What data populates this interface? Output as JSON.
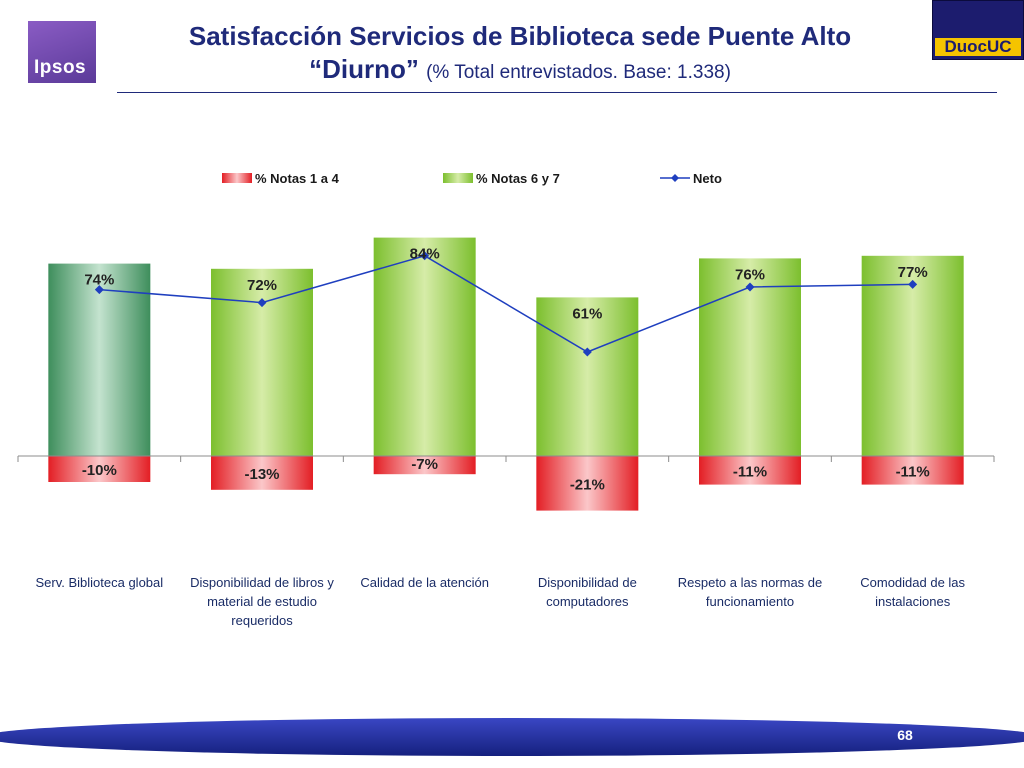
{
  "header": {
    "title_line1": "Satisfacción Servicios de Biblioteca sede Puente Alto",
    "title_line2_strong": "“Diurno”",
    "title_line2_note": "(% Total entrevistados. Base: 1.338)"
  },
  "logos": {
    "left": "Ipsos",
    "right": "DuocUC"
  },
  "footer": {
    "page_number": "68"
  },
  "colors": {
    "title": "#1f2a7a",
    "positive_bar": "#8cc63f",
    "first_bar": "#4a9c6a",
    "negative_bar": "#e31e24",
    "neto_line": "#1f3fbf",
    "footer_band": "#1f2aa8"
  },
  "chart_data": {
    "type": "bar",
    "categories": [
      "Serv. Biblioteca global",
      "Disponibilidad de libros y material de estudio requeridos",
      "Calidad de la atención",
      "Disponibilidad de computadores",
      "Respeto a las normas de funcionamiento",
      "Comodidad de las instalaciones"
    ],
    "series": [
      {
        "name": "% Notas 1 a 4",
        "values": [
          -10,
          -13,
          -7,
          -21,
          -11,
          -11
        ]
      },
      {
        "name": "% Notas 6 y 7",
        "values": [
          74,
          72,
          84,
          61,
          76,
          77
        ]
      },
      {
        "name": "Neto",
        "type": "line",
        "values": [
          64,
          59,
          77,
          40,
          65,
          66
        ]
      }
    ],
    "data_labels": {
      "positive": [
        "74%",
        "72%",
        "84%",
        "61%",
        "76%",
        "77%"
      ],
      "negative": [
        "-10%",
        "-13%",
        "-7%",
        "-21%",
        "-11%",
        "-11%"
      ]
    },
    "legend": [
      "% Notas 1 a 4",
      "% Notas 6 y 7",
      "Neto"
    ],
    "legend_position": "top",
    "ylim": [
      -25,
      100
    ],
    "grid": false
  }
}
